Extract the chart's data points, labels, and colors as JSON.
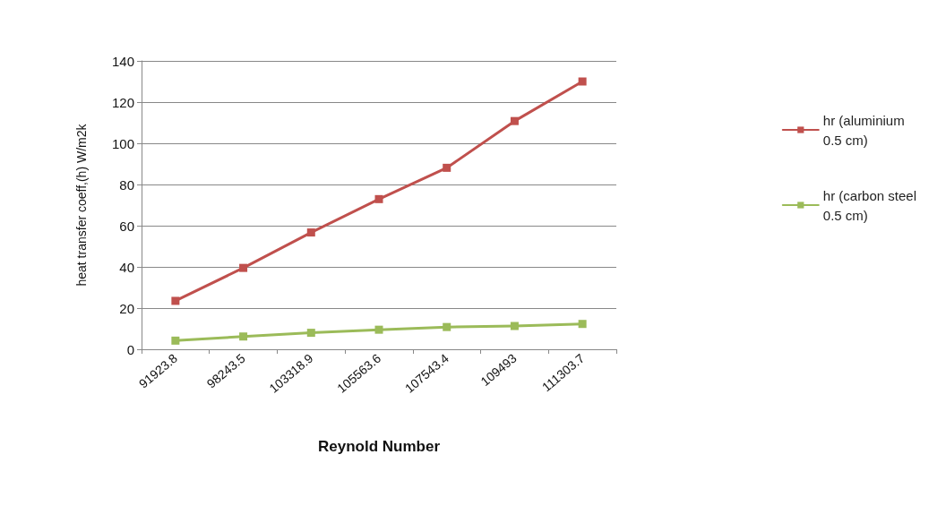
{
  "chart_data": {
    "type": "line",
    "xlabel": "Reynold Number",
    "ylabel": "heat transfer coeff,(h) W/m2k",
    "categories": [
      "91923.8",
      "98243.5",
      "103318.9",
      "105563.6",
      "107543.4",
      "109493",
      "111303.7"
    ],
    "series": [
      {
        "name": "hr (aluminium 0.5 cm)",
        "color": "#c0504d",
        "values": [
          23.5,
          39.5,
          56.7,
          72.9,
          88.1,
          110.8,
          130
        ]
      },
      {
        "name": "hr (carbon steel 0.5 cm)",
        "color": "#9bbb59",
        "values": [
          4.2,
          6.2,
          8.0,
          9.5,
          10.8,
          11.3,
          12.3
        ]
      }
    ],
    "ylim": [
      0,
      140
    ],
    "yticks": [
      0,
      20,
      40,
      60,
      80,
      100,
      120,
      140
    ],
    "grid": "y",
    "legend": "right",
    "marker": "square",
    "line_style": "solid"
  }
}
